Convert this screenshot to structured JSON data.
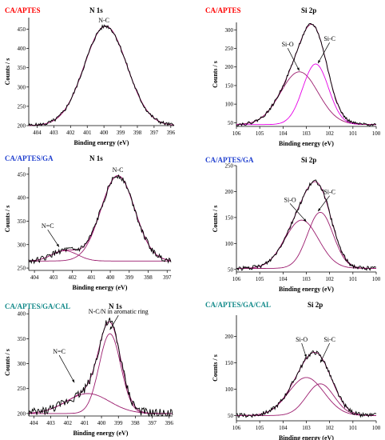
{
  "colors": {
    "experimental": "#000000",
    "component": "#9b1c6e",
    "component_light": "#e600e6",
    "title_red": "#ff0000",
    "title_blue": "#1f3fcf",
    "title_teal": "#138a8a"
  },
  "panels": [
    {
      "title": "CA/APTES",
      "title_color": "#ff0000",
      "element": "N 1s"
    },
    {
      "title": "CA/APTES",
      "title_color": "#ff0000",
      "element": "Si 2p"
    },
    {
      "title": "CA/APTES/GA",
      "title_color": "#1f3fcf",
      "element": "N 1s"
    },
    {
      "title": "CA/APTES/GA",
      "title_color": "#1f3fcf",
      "element": "Si 2p"
    },
    {
      "title": "CA/APTES/GA/CAL",
      "title_color": "#138a8a",
      "element": "N 1s"
    },
    {
      "title": "CA/APTES/GA/CAL",
      "title_color": "#138a8a",
      "element": "Si 2p"
    }
  ],
  "chart_data": [
    {
      "type": "line",
      "title": "N 1s",
      "sample": "CA/APTES",
      "xlabel": "Binding energy (eV)",
      "ylabel": "Counts / s",
      "xlim": [
        404.5,
        395.8
      ],
      "ylim": [
        200,
        480
      ],
      "xticks": [
        404,
        403,
        402,
        401,
        400,
        399,
        398,
        397,
        396
      ],
      "yticks": [
        200,
        250,
        300,
        350,
        400,
        450
      ],
      "x_reversed": true,
      "components": [
        {
          "label": "N-C",
          "center": 399.9,
          "height": 258,
          "fwhm": 3.0,
          "color": "component"
        }
      ],
      "baseline": 200,
      "noise": 5,
      "annotations": [
        {
          "text": "N-C",
          "x": 400.0,
          "y": 468
        }
      ]
    },
    {
      "type": "line",
      "title": "Si 2p",
      "sample": "CA/APTES",
      "xlabel": "Binding energy (eV)",
      "ylabel": "Counts / s",
      "xlim": [
        106,
        100
      ],
      "ylim": [
        40,
        320
      ],
      "xticks": [
        106,
        105,
        104,
        103,
        102,
        101,
        100
      ],
      "yticks": [
        50,
        100,
        150,
        200,
        250,
        300
      ],
      "x_reversed": true,
      "components": [
        {
          "label": "Si-O",
          "center": 103.3,
          "height": 142,
          "fwhm": 1.9,
          "color": "component"
        },
        {
          "label": "Si-C",
          "center": 102.6,
          "height": 163,
          "fwhm": 1.3,
          "color": "component_light"
        }
      ],
      "baseline": 45,
      "noise": 4,
      "annotations": [
        {
          "text": "Si-O",
          "x": 103.8,
          "y": 255,
          "arrow_to": [
            103.3,
            190
          ]
        },
        {
          "text": "Si-C",
          "x": 102.0,
          "y": 270,
          "arrow_to": [
            102.5,
            210
          ]
        }
      ]
    },
    {
      "type": "line",
      "title": "N 1s",
      "sample": "CA/APTES/GA",
      "xlabel": "Binding energy (eV)",
      "ylabel": "Counts / s",
      "xlim": [
        404.3,
        396.8
      ],
      "ylim": [
        245,
        465
      ],
      "xticks": [
        404,
        403,
        402,
        401,
        400,
        399,
        398,
        397
      ],
      "yticks": [
        250,
        300,
        350,
        400,
        450
      ],
      "x_reversed": true,
      "components": [
        {
          "label": "N=C",
          "center": 402.4,
          "height": 22,
          "fwhm": 1.6,
          "color": "component"
        },
        {
          "label": "N-C",
          "center": 399.6,
          "height": 182,
          "fwhm": 2.1,
          "color": "component"
        }
      ],
      "baseline": 265,
      "noise": 6,
      "annotations": [
        {
          "text": "N-C",
          "x": 399.6,
          "y": 455
        },
        {
          "text": "N=C",
          "x": 403.3,
          "y": 335,
          "arrow_to": [
            402.7,
            295
          ]
        }
      ]
    },
    {
      "type": "line",
      "title": "Si 2p",
      "sample": "CA/APTES/GA",
      "xlabel": "Binding energy (eV)",
      "ylabel": "Counts / s",
      "xlim": [
        106,
        100
      ],
      "ylim": [
        45,
        250
      ],
      "xticks": [
        106,
        105,
        104,
        103,
        102,
        101,
        100
      ],
      "yticks": [
        50,
        100,
        150,
        200,
        250
      ],
      "x_reversed": true,
      "components": [
        {
          "label": "Si-O",
          "center": 103.2,
          "height": 93,
          "fwhm": 1.7,
          "color": "component"
        },
        {
          "label": "Si-C",
          "center": 102.4,
          "height": 108,
          "fwhm": 1.3,
          "color": "component"
        }
      ],
      "baseline": 52,
      "noise": 4,
      "annotations": [
        {
          "text": "Si-O",
          "x": 103.7,
          "y": 180,
          "arrow_to": [
            103.0,
            142
          ]
        },
        {
          "text": "Si-C",
          "x": 102.0,
          "y": 195,
          "arrow_to": [
            102.5,
            162
          ]
        }
      ]
    },
    {
      "type": "line",
      "title": "N 1s",
      "sample": "CA/APTES/GA/CAL",
      "xlabel": "Binding energy (eV)",
      "ylabel": "Counts / s",
      "xlim": [
        404.3,
        395.8
      ],
      "ylim": [
        195,
        410
      ],
      "xticks": [
        404,
        403,
        402,
        401,
        400,
        399,
        398,
        397,
        396
      ],
      "yticks": [
        200,
        250,
        300,
        350,
        400
      ],
      "x_reversed": true,
      "components": [
        {
          "label": "N=C",
          "center": 400.8,
          "height": 40,
          "fwhm": 3.0,
          "color": "component"
        },
        {
          "label": "N-C/N in aromatic ring",
          "center": 399.5,
          "height": 160,
          "fwhm": 1.5,
          "color": "component"
        }
      ],
      "baseline": 200,
      "noise": 9,
      "annotations": [
        {
          "text": "N-C/N in aromatic ring",
          "x": 399.0,
          "y": 400,
          "arrow_to": [
            399.5,
            368
          ]
        },
        {
          "text": "N=C",
          "x": 402.5,
          "y": 320,
          "arrow_to": [
            401.6,
            262
          ]
        }
      ]
    },
    {
      "type": "line",
      "title": "Si 2p",
      "sample": "CA/APTES/GA/CAL",
      "xlabel": "Binding energy (eV)",
      "ylabel": "Counts / s",
      "xlim": [
        106,
        100
      ],
      "ylim": [
        40,
        240
      ],
      "xticks": [
        106,
        105,
        104,
        103,
        102,
        101,
        100
      ],
      "yticks": [
        50,
        100,
        150,
        200
      ],
      "x_reversed": true,
      "components": [
        {
          "label": "Si-O",
          "center": 103.0,
          "height": 72,
          "fwhm": 1.8,
          "color": "component"
        },
        {
          "label": "Si-C",
          "center": 102.4,
          "height": 60,
          "fwhm": 1.4,
          "color": "component"
        }
      ],
      "baseline": 50,
      "noise": 4,
      "annotations": [
        {
          "text": "Si-O",
          "x": 103.2,
          "y": 190,
          "arrow_to": [
            103.0,
            160
          ]
        },
        {
          "text": "Si-C",
          "x": 102.0,
          "y": 190,
          "arrow_to": [
            102.4,
            150
          ]
        }
      ]
    }
  ]
}
